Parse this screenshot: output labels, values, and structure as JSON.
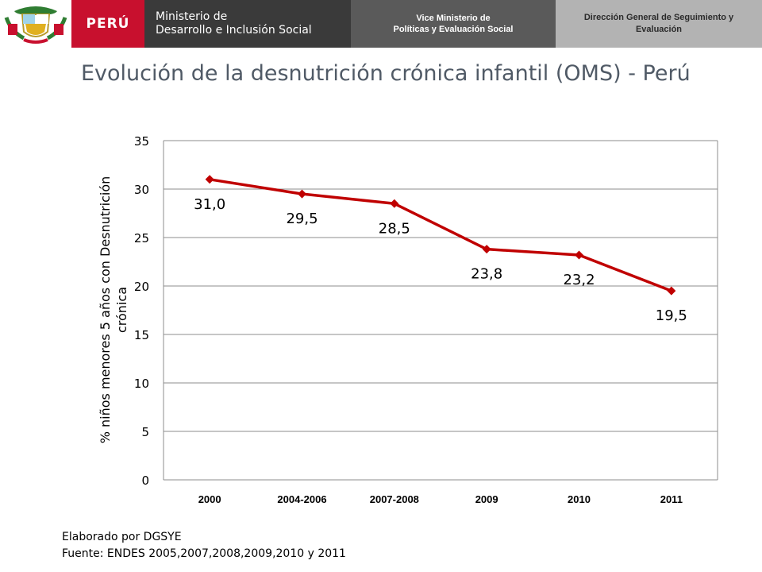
{
  "header": {
    "country": "PERÚ",
    "ministry_line1": "Ministerio de",
    "ministry_line2": "Desarrollo e Inclusión Social",
    "vice_line1": "Vice Ministerio de",
    "vice_line2": "Políticas y Evaluación Social",
    "direction": "Dirección General de Seguimiento y Evaluación",
    "colors": {
      "red": "#c8102e",
      "dark": "#3a3a3a",
      "mid": "#5a5a5a",
      "light": "#b3b3b3"
    }
  },
  "slide": {
    "title": "Evolución de la desnutrición crónica infantil (OMS) - Perú"
  },
  "chart_data": {
    "type": "line",
    "title": "",
    "ylabel": "% niños menores 5 años con Desnutrición crónica",
    "xlabel": "",
    "categories": [
      "2000",
      "2004-2006",
      "2007-2008",
      "2009",
      "2010",
      "2011"
    ],
    "series": [
      {
        "values": [
          31.0,
          29.5,
          28.5,
          23.8,
          23.2,
          19.5
        ],
        "color": "#c00000",
        "marker": "diamond"
      }
    ],
    "data_labels": [
      "31,0",
      "29,5",
      "28,5",
      "23,8",
      "23,2",
      "19,5"
    ],
    "ylim": [
      0,
      35
    ],
    "yticks": [
      0,
      5,
      10,
      15,
      20,
      25,
      30,
      35
    ],
    "grid": true
  },
  "footer": {
    "line1": "Elaborado por DGSYE",
    "line2": "Fuente: ENDES 2005,2007,2008,2009,2010 y 2011"
  }
}
